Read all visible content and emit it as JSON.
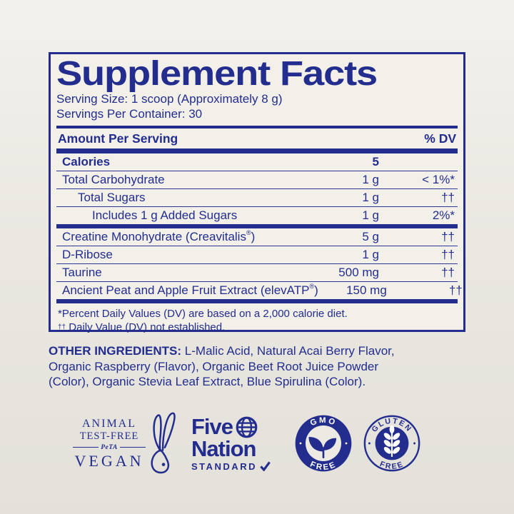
{
  "colors": {
    "navy": "#232d8e",
    "page_bg": "#eae8e1",
    "panel_bg": "#f2f0e9"
  },
  "label": {
    "title": "Supplement Facts",
    "serving_size": "Serving Size: 1 scoop (Approximately 8 g)",
    "servings_per_container": "Servings Per Container: 30",
    "header": {
      "amount_per_serving": "Amount Per Serving",
      "percent_dv": "% DV"
    },
    "rows": [
      {
        "name": "Calories",
        "amount": "5",
        "dv": "",
        "indent": 0,
        "bold": true
      },
      {
        "name": "Total Carbohydrate",
        "amount": "1 g",
        "dv": "< 1%*",
        "indent": 0
      },
      {
        "name": "Total Sugars",
        "amount": "1 g",
        "dv": "††",
        "indent": 1
      },
      {
        "name": "Includes 1 g Added Sugars",
        "amount": "1 g",
        "dv": "2%*",
        "indent": 2
      },
      {
        "name": "Creatine Monohydrate (Creavitalis®)",
        "amount": "5 g",
        "dv": "††",
        "indent": 0,
        "section_start": true
      },
      {
        "name": "D-Ribose",
        "amount": "1 g",
        "dv": "††",
        "indent": 0
      },
      {
        "name": "Taurine",
        "amount": "500 mg",
        "dv": "††",
        "indent": 0
      },
      {
        "name": "Ancient Peat and Apple Fruit Extract (elevATP®)",
        "amount": "150 mg",
        "dv": "††",
        "indent": 0
      }
    ],
    "footnotes": [
      {
        "sup": "",
        "text": "*Percent Daily Values (DV) are based on a 2,000 calorie diet."
      },
      {
        "sup": "††",
        "text": " Daily Value (DV) not established."
      }
    ]
  },
  "other_ingredients": {
    "label": "OTHER INGREDIENTS:",
    "text": " L-Malic Acid, Natural Acai Berry Flavor, Organic Raspberry (Flavor), Organic Beet Root Juice Powder (Color), Organic Stevia Leaf Extract, Blue Spirulina (Color)."
  },
  "badges": {
    "peta": {
      "line1": "ANIMAL",
      "line2": "TEST-FREE",
      "brand": "PeTA",
      "line3": "VEGAN"
    },
    "five_nation": {
      "word1": "Five",
      "word2": "Nation",
      "word3": "STANDARD"
    },
    "gmo_free": {
      "top": "GMO",
      "bottom": "FREE"
    },
    "gluten_free": {
      "top": "GLUTEN",
      "bottom": "FREE"
    }
  }
}
